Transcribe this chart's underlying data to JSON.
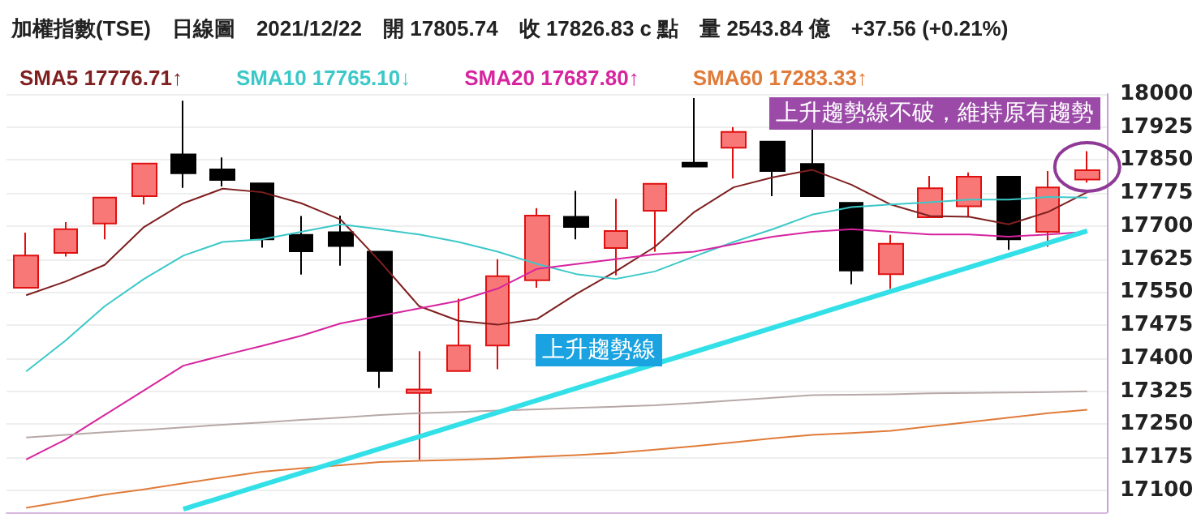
{
  "chart_data": {
    "type": "candlestick",
    "title": "加權指數(TSE)　日線圖　2021/12/22　開 17805.74　收 17826.83 c 點　量 2543.84 億　+37.56 (+0.21%)",
    "categories": [
      null,
      null,
      null,
      null,
      null,
      null,
      null,
      null,
      null,
      null,
      null,
      null,
      null,
      null,
      null,
      null,
      null,
      null,
      null,
      null,
      null,
      null,
      null,
      null,
      null,
      null,
      null,
      null
    ],
    "ohlc": [
      [
        17560,
        17685,
        17560,
        17633
      ],
      [
        17639,
        17709,
        17631,
        17693
      ],
      [
        17706,
        17765,
        17670,
        17765
      ],
      [
        17768,
        17842,
        17749,
        17842
      ],
      [
        17863,
        17985,
        17787,
        17820
      ],
      [
        17829,
        17856,
        17790,
        17805
      ],
      [
        17797,
        17797,
        17651,
        17670
      ],
      [
        17680,
        17723,
        17590,
        17643
      ],
      [
        17686,
        17724,
        17610,
        17655
      ],
      [
        17642,
        17642,
        17332,
        17371
      ],
      [
        17321,
        17416,
        17169,
        17329
      ],
      [
        17371,
        17535,
        17371,
        17429
      ],
      [
        17429,
        17625,
        17375,
        17586
      ],
      [
        17577,
        17741,
        17560,
        17724
      ],
      [
        17721,
        17780,
        17670,
        17698
      ],
      [
        17650,
        17762,
        17588,
        17689
      ],
      [
        17735,
        17796,
        17642,
        17796
      ],
      [
        17844,
        17991,
        17835,
        17835
      ],
      [
        17878,
        17925,
        17808,
        17914
      ],
      [
        17892,
        17892,
        17768,
        17825
      ],
      [
        17841,
        17920,
        17768,
        17768
      ],
      [
        17753,
        17753,
        17568,
        17599
      ],
      [
        17591,
        17680,
        17557,
        17660
      ],
      [
        17720,
        17814,
        17720,
        17786
      ],
      [
        17745,
        17822,
        17720,
        17812
      ],
      [
        17812,
        17812,
        17646,
        17670
      ],
      [
        17687,
        17825,
        17653,
        17788
      ],
      [
        17805.74,
        17870,
        17799,
        17826.83
      ]
    ],
    "series": [
      {
        "name": "SMA5 17776.71↑",
        "type": "line",
        "color": "#7f1f1f",
        "values": [
          17543,
          17574,
          17612,
          17698,
          17752,
          17785,
          17777,
          17752,
          17715,
          17620,
          17518,
          17485,
          17476,
          17489,
          17546,
          17597,
          17653,
          17732,
          17788,
          17811,
          17828,
          17794,
          17749,
          17723,
          17721,
          17704,
          17732,
          17777
        ]
      },
      {
        "name": "SMA10 17765.10↓",
        "type": "line",
        "color": "#3cc8c8",
        "values": [
          17370,
          17440,
          17518,
          17580,
          17633,
          17664,
          17670,
          17687,
          17704,
          17693,
          17681,
          17664,
          17642,
          17614,
          17591,
          17580,
          17597,
          17631,
          17664,
          17693,
          17726,
          17743,
          17749,
          17754,
          17760,
          17760,
          17766,
          17765
        ]
      },
      {
        "name": "SMA20 17687.80↑",
        "type": "line",
        "color": "#d6249f",
        "values": [
          17170,
          17215,
          17271,
          17327,
          17383,
          17406,
          17428,
          17451,
          17479,
          17496,
          17513,
          17530,
          17558,
          17603,
          17614,
          17625,
          17636,
          17642,
          17659,
          17676,
          17687,
          17693,
          17687,
          17681,
          17681,
          17676,
          17681,
          17687
        ]
      },
      {
        "name": "SMA60 17283.33↑",
        "type": "line",
        "color": "#e07b39",
        "values": [
          17060,
          17075,
          17090,
          17102,
          17116,
          17129,
          17142,
          17150,
          17157,
          17164,
          17167,
          17169,
          17172,
          17176,
          17180,
          17185,
          17192,
          17200,
          17209,
          17218,
          17226,
          17230,
          17235,
          17245,
          17255,
          17265,
          17275,
          17283
        ]
      },
      {
        "type": "line",
        "color": "#b8a8a8",
        "values": [
          17220,
          17226,
          17232,
          17237,
          17243,
          17249,
          17254,
          17260,
          17265,
          17271,
          17275,
          17278,
          17281,
          17284,
          17287,
          17290,
          17293,
          17298,
          17304,
          17310,
          17316,
          17317,
          17318,
          17320,
          17321,
          17322,
          17323,
          17325
        ]
      },
      {
        "type": "line",
        "color": "#33e0e8",
        "values": [
          null,
          null,
          null,
          null,
          17057,
          null,
          null,
          null,
          null,
          null,
          null,
          null,
          null,
          null,
          null,
          null,
          null,
          null,
          null,
          null,
          null,
          null,
          null,
          null,
          null,
          null,
          null,
          17689
        ]
      }
    ],
    "annotations": [
      "上升趨勢線",
      "上升趨勢線不破，維持原有趨勢"
    ],
    "ylim": [
      17050,
      18000
    ],
    "yticks": [
      17100,
      17175,
      17250,
      17325,
      17400,
      17475,
      17550,
      17625,
      17700,
      17775,
      17850,
      17925,
      18000
    ],
    "grid": "y",
    "legend": "top left",
    "tick_labels": "y",
    "marker": "none"
  }
}
